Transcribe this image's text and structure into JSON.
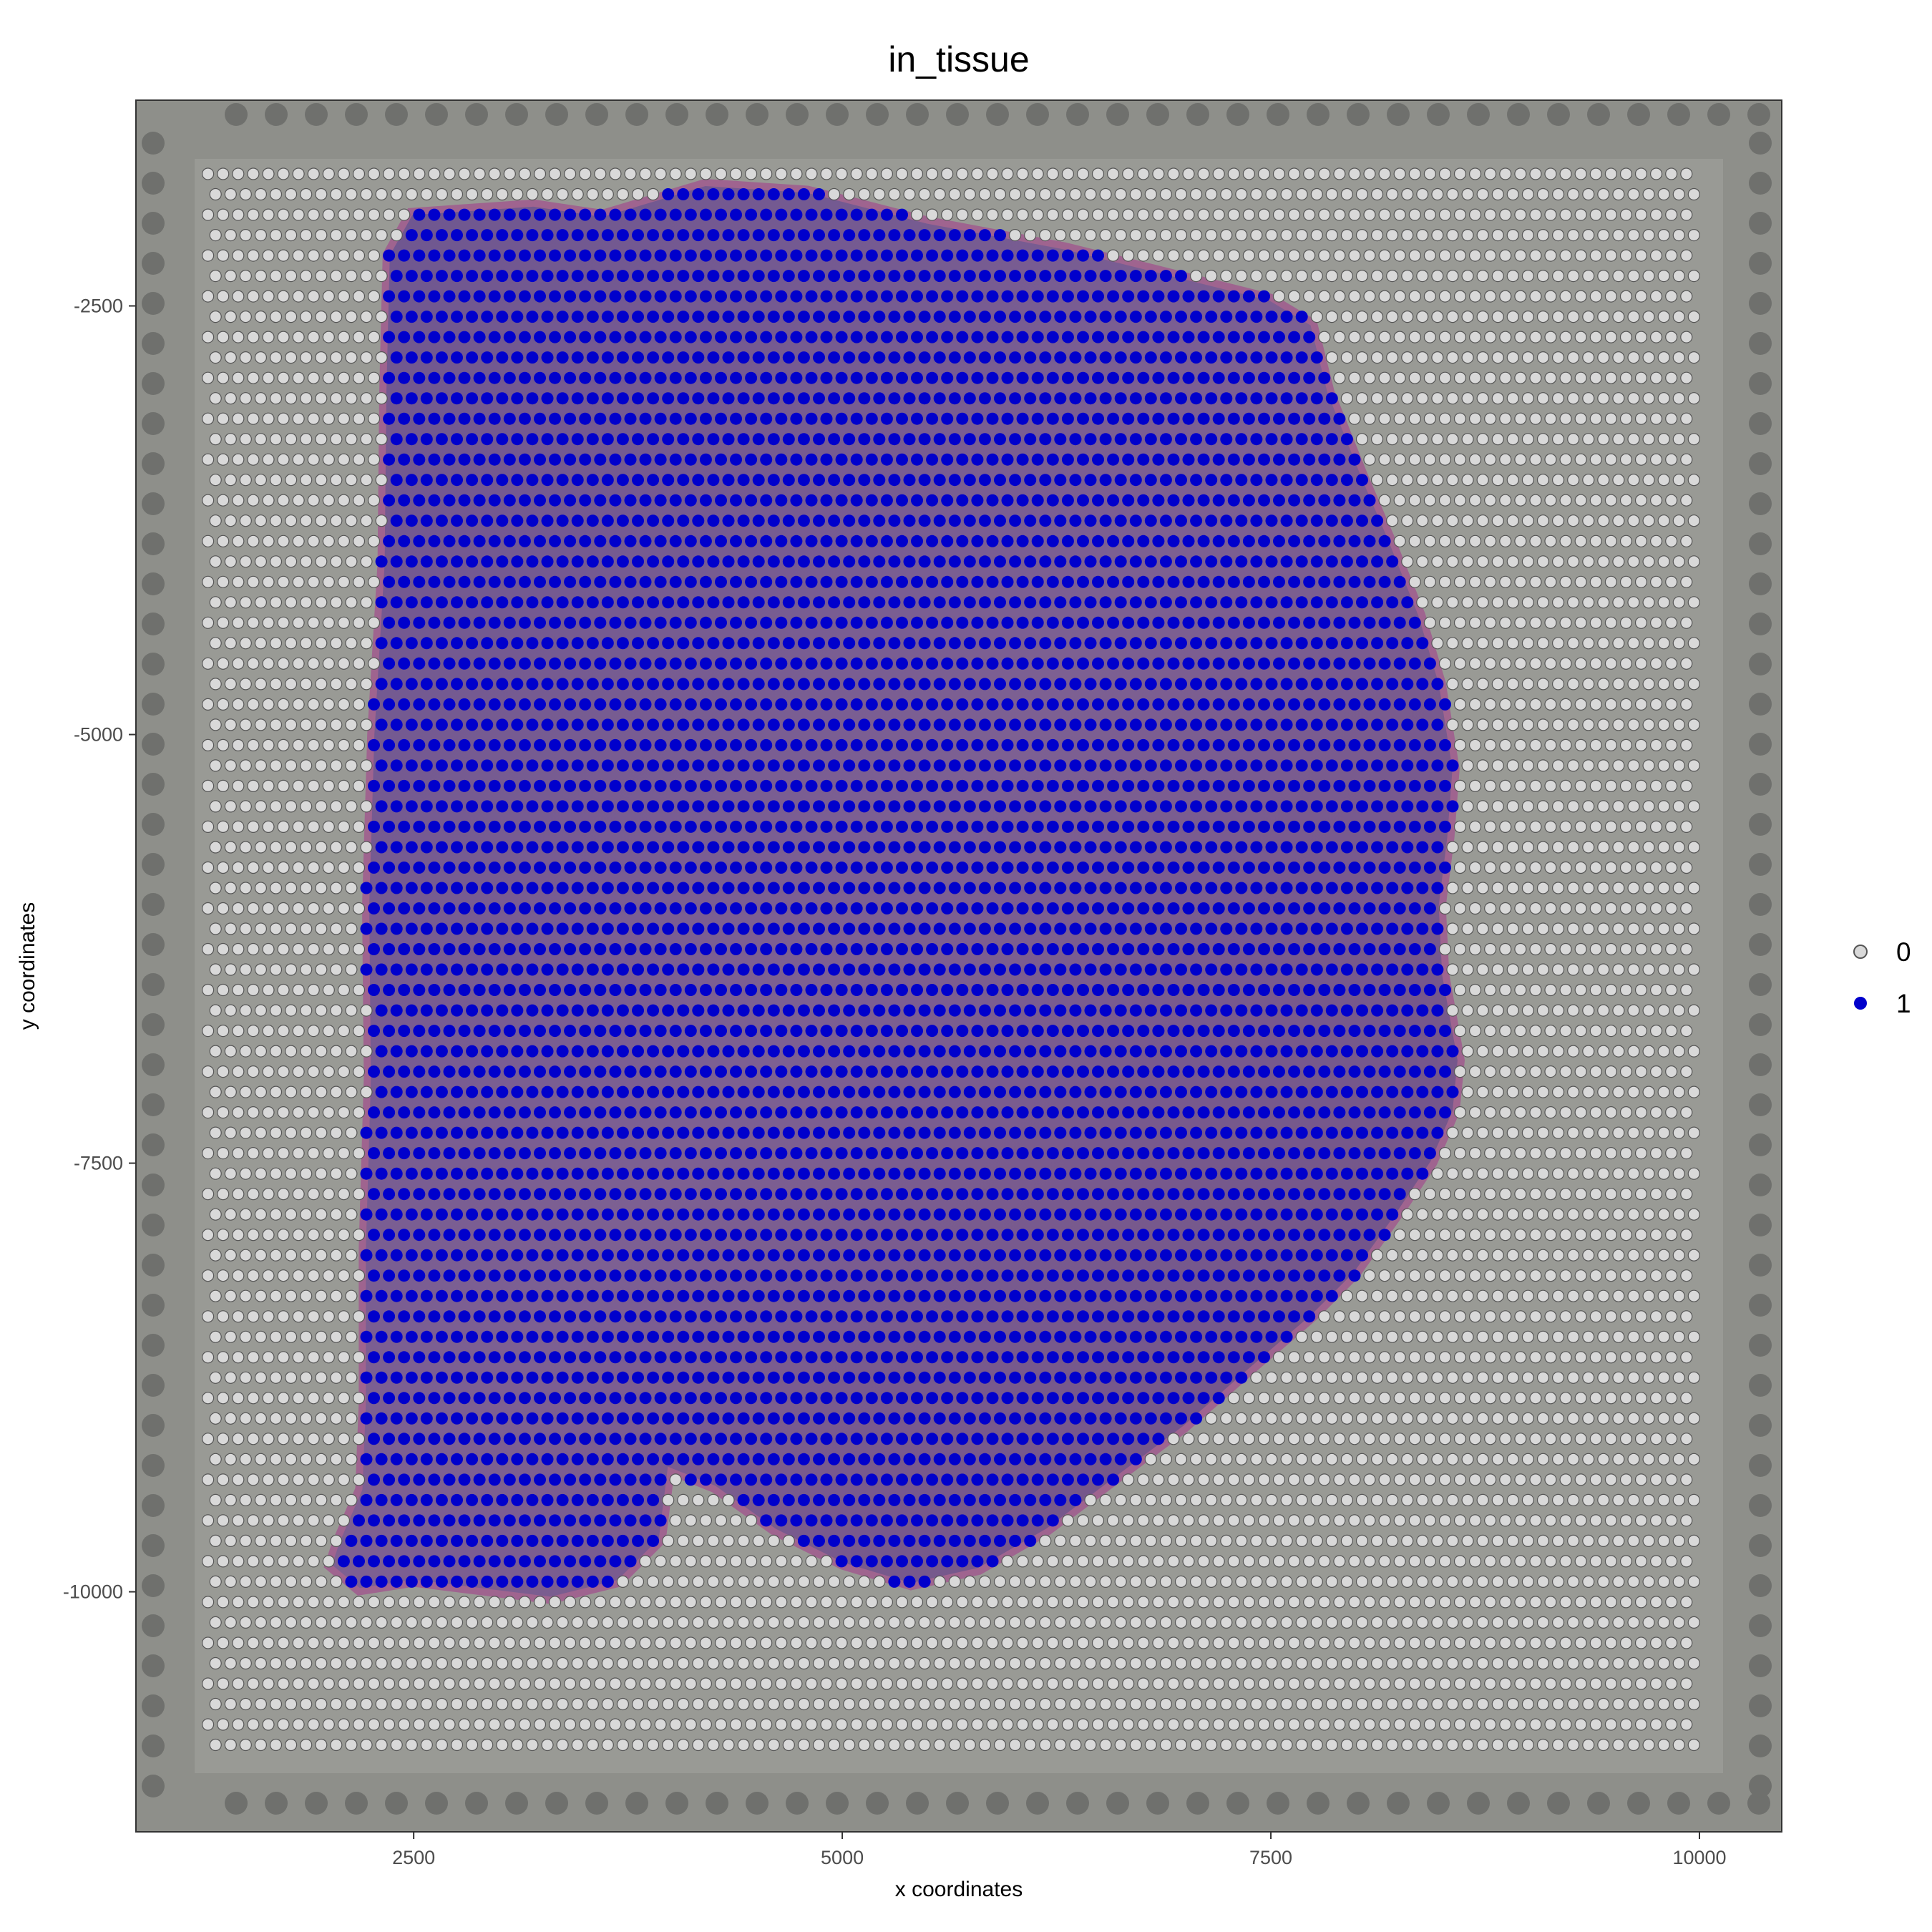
{
  "chart_data": {
    "type": "scatter",
    "title": "in_tissue",
    "xlabel": "x coordinates",
    "ylabel": "y coordinates",
    "xlim": [
      880,
      10480
    ],
    "ylim": [
      -11400,
      -1300
    ],
    "xticks": [
      2500,
      5000,
      7500,
      10000
    ],
    "yticks": [
      -2500,
      -5000,
      -7500,
      -10000
    ],
    "xtick_labels": [
      "2500",
      "5000",
      "7500",
      "10000"
    ],
    "ytick_labels": [
      "-2500",
      "-5000",
      "-7500",
      "-10000"
    ],
    "grid": false,
    "background": "tissue section image (H&E) behind spots",
    "spot_grid": {
      "x_range": [
        1300,
        10000
      ],
      "y_range": [
        -11000,
        -1730
      ],
      "dx": 88,
      "dy": 119,
      "pattern": "hexagonal, alternate rows offset by half dx"
    },
    "tissue_outline": [
      [
        2480,
        -1950
      ],
      [
        3200,
        -1900
      ],
      [
        3600,
        -1960
      ],
      [
        4200,
        -1780
      ],
      [
        4800,
        -1820
      ],
      [
        5500,
        -2000
      ],
      [
        6300,
        -2150
      ],
      [
        6900,
        -2300
      ],
      [
        7500,
        -2450
      ],
      [
        7750,
        -2600
      ],
      [
        7850,
        -3000
      ],
      [
        8050,
        -3500
      ],
      [
        8200,
        -3850
      ],
      [
        8380,
        -4300
      ],
      [
        8500,
        -4700
      ],
      [
        8580,
        -5200
      ],
      [
        8550,
        -5600
      ],
      [
        8500,
        -6000
      ],
      [
        8520,
        -6400
      ],
      [
        8610,
        -6900
      ],
      [
        8580,
        -7200
      ],
      [
        8450,
        -7500
      ],
      [
        8250,
        -7800
      ],
      [
        8000,
        -8150
      ],
      [
        7750,
        -8400
      ],
      [
        7400,
        -8700
      ],
      [
        7000,
        -9050
      ],
      [
        6600,
        -9350
      ],
      [
        6200,
        -9650
      ],
      [
        5800,
        -9880
      ],
      [
        5400,
        -9970
      ],
      [
        5000,
        -9850
      ],
      [
        4600,
        -9650
      ],
      [
        4250,
        -9400
      ],
      [
        4000,
        -9300
      ],
      [
        3950,
        -9700
      ],
      [
        3700,
        -9950
      ],
      [
        3300,
        -10050
      ],
      [
        2900,
        -10000
      ],
      [
        2500,
        -9950
      ],
      [
        2180,
        -10000
      ],
      [
        2000,
        -9850
      ],
      [
        2050,
        -9700
      ],
      [
        2180,
        -9400
      ],
      [
        2200,
        -8900
      ],
      [
        2200,
        -8000
      ],
      [
        2230,
        -7000
      ],
      [
        2220,
        -6000
      ],
      [
        2250,
        -5000
      ],
      [
        2310,
        -4000
      ],
      [
        2320,
        -3000
      ],
      [
        2340,
        -2200
      ]
    ],
    "series": [
      {
        "name": "0",
        "color": "#d9d9d9",
        "stroke": "#555555",
        "description": "spots outside tissue"
      },
      {
        "name": "1",
        "color": "#0000cc",
        "stroke": "#0000cc",
        "description": "spots inside tissue"
      }
    ],
    "legend": {
      "position": "right",
      "entries": [
        "0",
        "1"
      ]
    }
  }
}
